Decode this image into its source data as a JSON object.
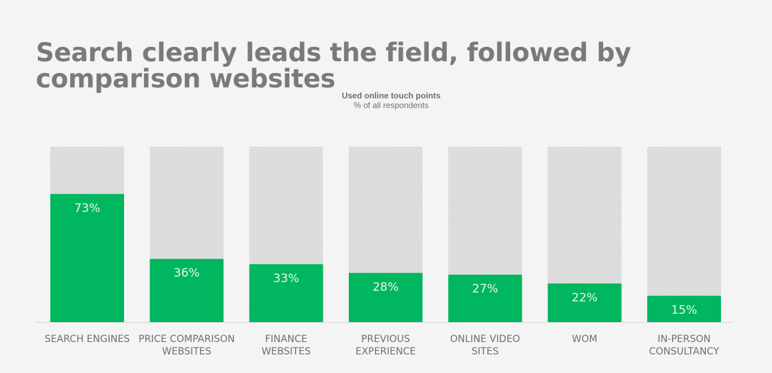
{
  "chart_data": {
    "type": "bar",
    "title": "Search clearly leads the field, followed by comparison websites",
    "subtitle": "Used online touch points",
    "unit_note": "% of all respondents",
    "categories": [
      [
        "SEARCH ENGINES"
      ],
      [
        "PRICE COMPARISON",
        "WEBSITES"
      ],
      [
        "FINANCE",
        "WEBSITES"
      ],
      [
        "PREVIOUS",
        "EXPERIENCE"
      ],
      [
        "ONLINE VIDEO",
        "SITES"
      ],
      [
        "WOM"
      ],
      [
        "IN-PERSON",
        "CONSULTANCY"
      ]
    ],
    "values": [
      73,
      36,
      33,
      28,
      27,
      22,
      15
    ],
    "value_labels": [
      "73%",
      "36%",
      "33%",
      "28%",
      "27%",
      "22%",
      "15%"
    ],
    "ylim": [
      0,
      100
    ],
    "grid": false,
    "legend": "none",
    "colors": {
      "bar": "#00b65e",
      "background_hatch": "#c9c9c9",
      "text": "#6f6f6f",
      "value_text": "#e8f7ee"
    }
  }
}
